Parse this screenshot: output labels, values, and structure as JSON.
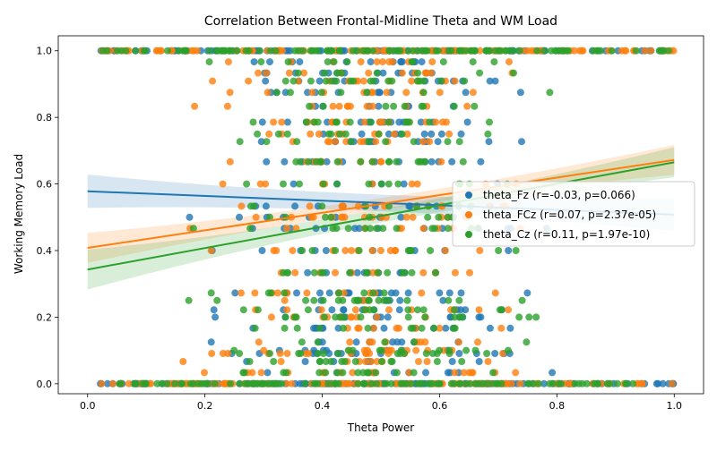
{
  "chart_data": {
    "type": "scatter",
    "title": "Correlation Between Frontal-Midline Theta and WM Load",
    "xlabel": "Theta Power",
    "ylabel": "Working Memory Load",
    "xlim": [
      -0.05,
      1.05
    ],
    "ylim": [
      -0.03,
      1.045
    ],
    "xticks": [
      0.0,
      0.2,
      0.4,
      0.6,
      0.8,
      1.0
    ],
    "xtick_labels": [
      "0.0",
      "0.2",
      "0.4",
      "0.6",
      "0.8",
      "1.0"
    ],
    "yticks": [
      0.0,
      0.2,
      0.4,
      0.6,
      0.8,
      1.0
    ],
    "ytick_labels": [
      "0.0",
      "0.2",
      "0.4",
      "0.6",
      "0.8",
      "1.0"
    ],
    "grid": false,
    "legend_position": "center-right",
    "y_levels": [
      0.0,
      0.0333,
      0.0667,
      0.0909,
      0.1,
      0.125,
      0.1667,
      0.2,
      0.2222,
      0.25,
      0.2727,
      0.3333,
      0.4,
      0.4667,
      0.5,
      0.5333,
      0.6,
      0.6667,
      0.7273,
      0.75,
      0.7857,
      0.8333,
      0.875,
      0.9091,
      0.9333,
      0.9667,
      1.0
    ],
    "series": [
      {
        "name": "theta_Fz (r=-0.03, p=0.066)",
        "color": "#1f77b4",
        "fit": {
          "y0": 0.578,
          "y1": 0.508
        },
        "ci_width": [
          0.05,
          0.025,
          0.05
        ],
        "seed": 11
      },
      {
        "name": "theta_FCz (r=0.07, p=2.37e-05)",
        "color": "#ff7f0e",
        "fit": {
          "y0": 0.408,
          "y1": 0.672
        },
        "ci_width": [
          0.045,
          0.018,
          0.045
        ],
        "seed": 23
      },
      {
        "name": "theta_Cz (r=0.11, p=1.97e-10)",
        "color": "#2ca02c",
        "fit": {
          "y0": 0.343,
          "y1": 0.665
        },
        "ci_width": [
          0.06,
          0.02,
          0.045
        ],
        "seed": 37
      }
    ]
  }
}
